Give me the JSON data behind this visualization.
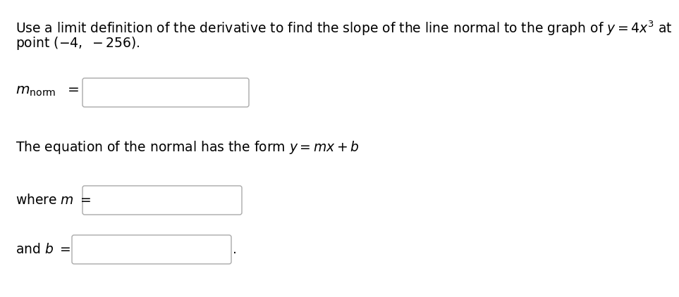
{
  "bg_color": "#ffffff",
  "line1": "Use a limit definition of the derivative to find the slope of the line normal to the graph of $y = 4x^3$ at",
  "line2": "point $( - 4,\\ -256)$.",
  "label_mnorm": "$m_{\\mathrm{norm}}$",
  "label_eq": "The equation of the normal has the form $y = mx + b$",
  "label_where_m": "where $m =\\ $",
  "label_and_b": "and $b =\\ $",
  "font_size": 13.5,
  "box_edge_color": "#aaaaaa",
  "box_face_color": "#ffffff",
  "text_color": "#000000"
}
